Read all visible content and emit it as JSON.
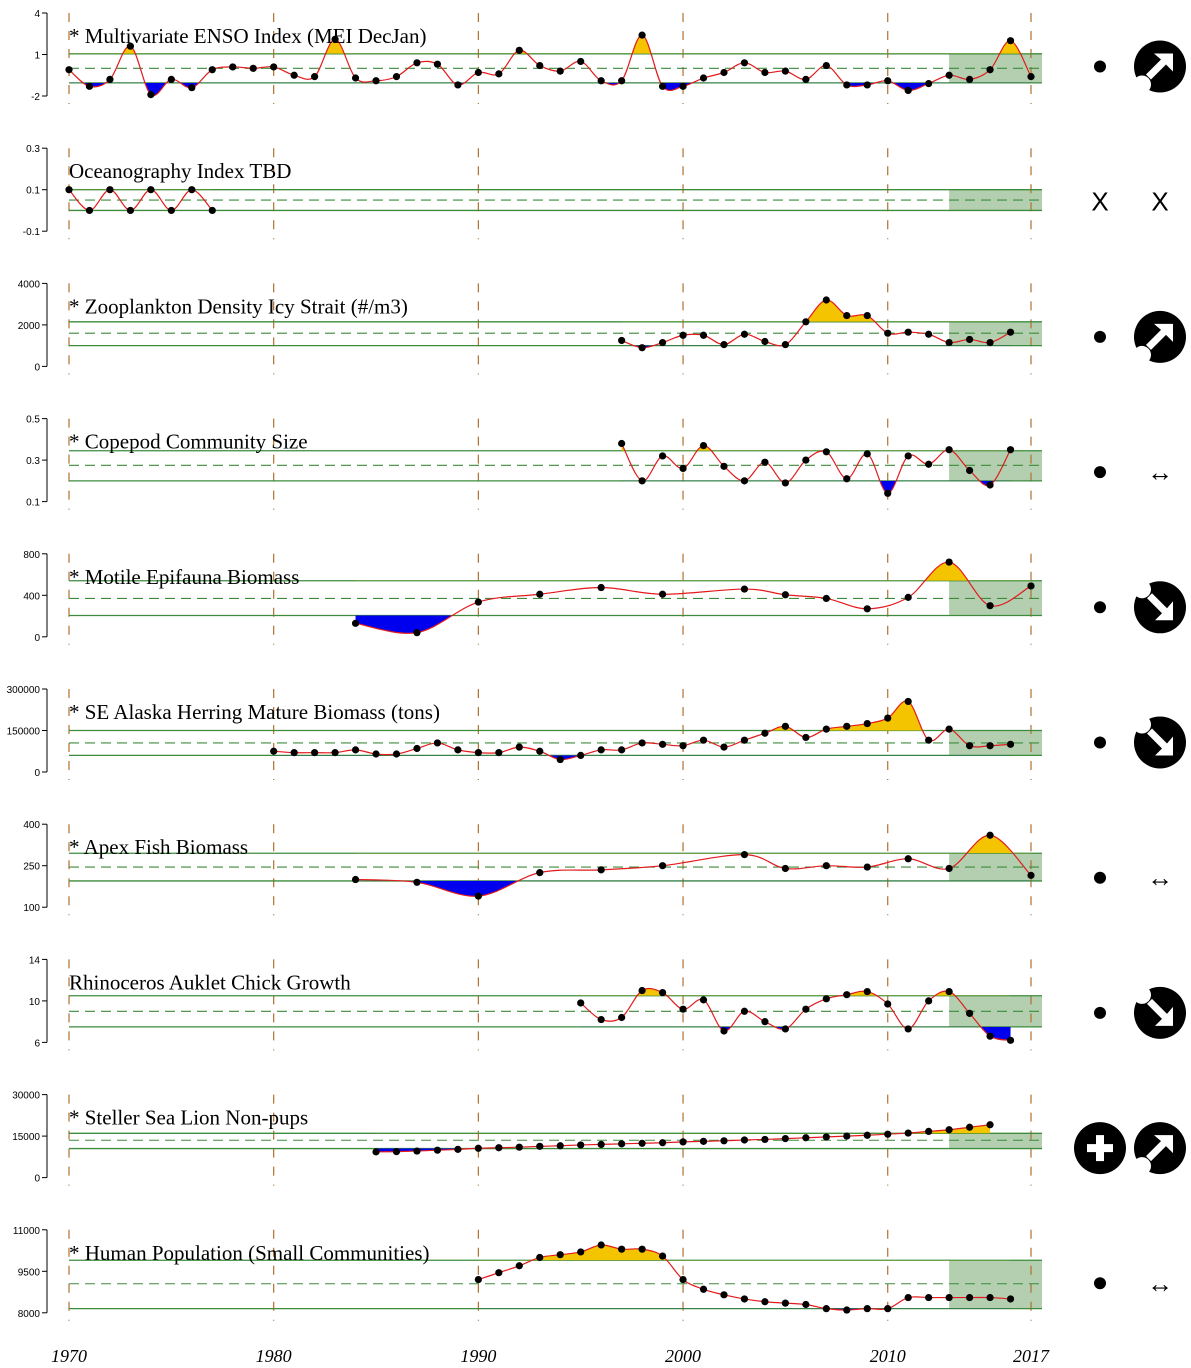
{
  "chart_data": {
    "type": "line",
    "x_range": [
      1970,
      2017
    ],
    "x_ticks": [
      1970,
      1980,
      1990,
      2000,
      2010,
      2017
    ],
    "x_tick_labels": [
      "1970",
      "1980",
      "1990",
      "2000",
      "2010",
      "2017"
    ],
    "recent_window": [
      2013,
      2017
    ],
    "colors": {
      "line": "#e31a1c",
      "point": "#000000",
      "above": "#f5c400",
      "below": "#0000ee",
      "recent_band": "#b3cfb0",
      "sd_line": "#3c8c3c",
      "mean_line": "#3c8c3c",
      "decade_line": "#b07030"
    },
    "panels": [
      {
        "title": "* Multivariate ENSO Index (MEI DecJan)",
        "ylim": [
          -2,
          4
        ],
        "yticks": [
          -2,
          1,
          4
        ],
        "ytick_labels": [
          "-2",
          "1",
          "4"
        ],
        "mean": 0.0,
        "sd_upper": 1.05,
        "sd_lower": -1.05,
        "status_symbol": "dot",
        "trend_symbol": "arrow-up-right-icon",
        "x": [
          1970,
          1971,
          1972,
          1973,
          1974,
          1975,
          1976,
          1977,
          1978,
          1979,
          1980,
          1981,
          1982,
          1983,
          1984,
          1985,
          1986,
          1987,
          1988,
          1989,
          1990,
          1991,
          1992,
          1993,
          1994,
          1995,
          1996,
          1997,
          1998,
          1999,
          2000,
          2001,
          2002,
          2003,
          2004,
          2005,
          2006,
          2007,
          2008,
          2009,
          2010,
          2011,
          2012,
          2013,
          2014,
          2015,
          2016,
          2017
        ],
        "y": [
          -0.1,
          -1.3,
          -0.8,
          1.6,
          -1.9,
          -0.8,
          -1.4,
          -0.1,
          0.1,
          0.0,
          0.1,
          -0.5,
          -0.6,
          2.1,
          -0.7,
          -0.9,
          -0.6,
          0.4,
          0.3,
          -1.2,
          -0.3,
          -0.4,
          1.3,
          0.2,
          -0.2,
          0.5,
          -0.9,
          -0.9,
          2.4,
          -1.3,
          -1.3,
          -0.7,
          -0.3,
          0.4,
          -0.3,
          -0.2,
          -0.8,
          0.2,
          -1.2,
          -1.2,
          -0.9,
          -1.6,
          -1.1,
          -0.5,
          -0.8,
          -0.1,
          2.0,
          -0.6
        ]
      },
      {
        "title": "Oceanography Index TBD",
        "ylim": [
          -0.1,
          0.3
        ],
        "yticks": [
          -0.1,
          0.1,
          0.3
        ],
        "ytick_labels": [
          "-0.1",
          "0.1",
          "0.3"
        ],
        "mean": 0.05,
        "sd_upper": 0.1,
        "sd_lower": 0.0,
        "status_symbol": "x",
        "trend_symbol": "x",
        "x": [
          1970,
          1971,
          1972,
          1973,
          1974,
          1975,
          1976,
          1977
        ],
        "y": [
          0.1,
          0.0,
          0.1,
          0.0,
          0.1,
          0.0,
          0.1,
          0.0
        ]
      },
      {
        "title": "* Zooplankton Density Icy Strait (#/m3)",
        "ylim": [
          0,
          4000
        ],
        "yticks": [
          0,
          2000,
          4000
        ],
        "ytick_labels": [
          "0",
          "2000",
          "4000"
        ],
        "mean": 1600,
        "sd_upper": 2150,
        "sd_lower": 1000,
        "status_symbol": "dot",
        "trend_symbol": "arrow-up-right-icon",
        "x": [
          1997,
          1998,
          1999,
          2000,
          2001,
          2002,
          2003,
          2004,
          2005,
          2006,
          2007,
          2008,
          2009,
          2010,
          2011,
          2012,
          2013,
          2014,
          2015,
          2016
        ],
        "y": [
          1250,
          900,
          1150,
          1500,
          1500,
          1050,
          1550,
          1200,
          1050,
          2150,
          3200,
          2450,
          2450,
          1600,
          1650,
          1550,
          1150,
          1300,
          1150,
          1650
        ]
      },
      {
        "title": "* Copepod Community Size",
        "ylim": [
          0.1,
          0.5
        ],
        "yticks": [
          0.1,
          0.3,
          0.5
        ],
        "ytick_labels": [
          "0.1",
          "0.3",
          "0.5"
        ],
        "mean": 0.275,
        "sd_upper": 0.345,
        "sd_lower": 0.2,
        "status_symbol": "dot",
        "trend_symbol": "left-right-arrow-icon",
        "x": [
          1997,
          1998,
          1999,
          2000,
          2001,
          2002,
          2003,
          2004,
          2005,
          2006,
          2007,
          2008,
          2009,
          2010,
          2011,
          2012,
          2013,
          2014,
          2015,
          2016
        ],
        "y": [
          0.38,
          0.2,
          0.32,
          0.26,
          0.37,
          0.27,
          0.2,
          0.29,
          0.19,
          0.3,
          0.34,
          0.21,
          0.33,
          0.14,
          0.32,
          0.28,
          0.35,
          0.25,
          0.18,
          0.35
        ]
      },
      {
        "title": "* Motile Epifauna Biomass",
        "ylim": [
          0,
          800
        ],
        "yticks": [
          0,
          400,
          800
        ],
        "ytick_labels": [
          "0",
          "400",
          "800"
        ],
        "mean": 370,
        "sd_upper": 540,
        "sd_lower": 205,
        "status_symbol": "dot",
        "trend_symbol": "arrow-down-right-icon",
        "x": [
          1984,
          1987,
          1990,
          1993,
          1996,
          1999,
          2003,
          2005,
          2007,
          2009,
          2011,
          2013,
          2015,
          2017
        ],
        "y": [
          130,
          40,
          335,
          410,
          475,
          410,
          460,
          405,
          370,
          270,
          380,
          720,
          300,
          490
        ]
      },
      {
        "title": "* SE Alaska Herring Mature Biomass (tons)",
        "ylim": [
          0,
          300000
        ],
        "yticks": [
          0,
          150000,
          300000
        ],
        "ytick_labels": [
          "0",
          "150000",
          "300000"
        ],
        "mean": 105000,
        "sd_upper": 150000,
        "sd_lower": 60000,
        "status_symbol": "dot",
        "trend_symbol": "arrow-down-right-icon",
        "x": [
          1980,
          1981,
          1982,
          1983,
          1984,
          1985,
          1986,
          1987,
          1988,
          1989,
          1990,
          1991,
          1992,
          1993,
          1994,
          1995,
          1996,
          1997,
          1998,
          1999,
          2000,
          2001,
          2002,
          2003,
          2004,
          2005,
          2006,
          2007,
          2008,
          2009,
          2010,
          2011,
          2012,
          2013,
          2014,
          2015,
          2016
        ],
        "y": [
          75000,
          70000,
          70000,
          70000,
          80000,
          65000,
          65000,
          85000,
          105000,
          80000,
          70000,
          70000,
          90000,
          75000,
          45000,
          60000,
          80000,
          80000,
          105000,
          100000,
          95000,
          115000,
          90000,
          115000,
          140000,
          165000,
          125000,
          155000,
          165000,
          175000,
          195000,
          255000,
          115000,
          155000,
          95000,
          95000,
          100000
        ]
      },
      {
        "title": "* Apex Fish Biomass",
        "ylim": [
          100,
          400
        ],
        "yticks": [
          100,
          250,
          400
        ],
        "ytick_labels": [
          "100",
          "250",
          "400"
        ],
        "mean": 245,
        "sd_upper": 295,
        "sd_lower": 195,
        "status_symbol": "dot",
        "trend_symbol": "left-right-arrow-icon",
        "x": [
          1984,
          1987,
          1990,
          1993,
          1996,
          1999,
          2003,
          2005,
          2007,
          2009,
          2011,
          2013,
          2015,
          2017
        ],
        "y": [
          200,
          190,
          140,
          225,
          235,
          250,
          290,
          240,
          250,
          245,
          275,
          240,
          360,
          215
        ]
      },
      {
        "title": "Rhinoceros Auklet Chick Growth",
        "ylim": [
          6,
          14
        ],
        "yticks": [
          6,
          10,
          14
        ],
        "ytick_labels": [
          "6",
          "10",
          "14"
        ],
        "mean": 9.0,
        "sd_upper": 10.5,
        "sd_lower": 7.5,
        "status_symbol": "dot",
        "trend_symbol": "arrow-down-right-icon",
        "x": [
          1995,
          1996,
          1997,
          1998,
          1999,
          2000,
          2001,
          2002,
          2003,
          2004,
          2005,
          2006,
          2007,
          2008,
          2009,
          2010,
          2011,
          2012,
          2013,
          2014,
          2015,
          2016
        ],
        "y": [
          9.8,
          8.2,
          8.4,
          11.0,
          10.8,
          9.2,
          10.1,
          7.1,
          9.0,
          8.0,
          7.3,
          9.2,
          10.2,
          10.6,
          10.9,
          9.7,
          7.3,
          10.0,
          10.9,
          8.8,
          6.6,
          6.2
        ]
      },
      {
        "title": "* Steller Sea Lion Non-pups",
        "ylim": [
          0,
          30000
        ],
        "yticks": [
          0,
          15000,
          30000
        ],
        "ytick_labels": [
          "0",
          "15000",
          "30000"
        ],
        "mean": 13500,
        "sd_upper": 16000,
        "sd_lower": 10500,
        "status_symbol": "plus-icon",
        "trend_symbol": "arrow-up-right-icon",
        "x": [
          1985,
          1986,
          1987,
          1988,
          1989,
          1990,
          1991,
          1992,
          1993,
          1994,
          1995,
          1996,
          1997,
          1998,
          1999,
          2000,
          2001,
          2002,
          2003,
          2004,
          2005,
          2006,
          2007,
          2008,
          2009,
          2010,
          2011,
          2012,
          2013,
          2014,
          2015
        ],
        "y": [
          9300,
          9400,
          9600,
          9900,
          10200,
          10600,
          10800,
          11000,
          11300,
          11500,
          11800,
          12000,
          12200,
          12400,
          12600,
          12900,
          13100,
          13300,
          13600,
          13800,
          14100,
          14400,
          14700,
          15000,
          15300,
          15700,
          16100,
          16700,
          17300,
          18200,
          19100
        ]
      },
      {
        "title": "* Human Population (Small Communities)",
        "ylim": [
          8000,
          11000
        ],
        "yticks": [
          8000,
          9500,
          11000
        ],
        "ytick_labels": [
          "8000",
          "9500",
          "11000"
        ],
        "mean": 9050,
        "sd_upper": 9900,
        "sd_lower": 8150,
        "status_symbol": "dot",
        "trend_symbol": "left-right-arrow-icon",
        "x": [
          1990,
          1991,
          1992,
          1993,
          1994,
          1995,
          1996,
          1997,
          1998,
          1999,
          2000,
          2001,
          2002,
          2003,
          2004,
          2005,
          2006,
          2007,
          2008,
          2009,
          2010,
          2011,
          2012,
          2013,
          2014,
          2015,
          2016
        ],
        "y": [
          9200,
          9450,
          9700,
          10000,
          10100,
          10200,
          10450,
          10300,
          10300,
          10050,
          9200,
          8850,
          8650,
          8500,
          8400,
          8350,
          8300,
          8150,
          8100,
          8150,
          8150,
          8550,
          8550,
          8550,
          8550,
          8550,
          8500
        ]
      }
    ]
  }
}
